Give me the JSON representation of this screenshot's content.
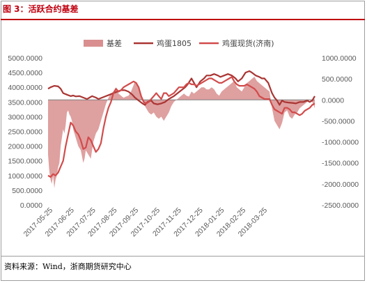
{
  "title": "图 3：活跃合约基差",
  "footer": "资料来源：Wind，浙商期货研究中心",
  "chart_data": {
    "type": "line",
    "legend": [
      {
        "name": "基差",
        "kind": "area",
        "color": "#d98f8f"
      },
      {
        "name": "鸡蛋1805",
        "kind": "line",
        "color": "#a93533"
      },
      {
        "name": "鸡蛋现货(济南)",
        "kind": "line",
        "color": "#d24b4b"
      }
    ],
    "x_ticks": [
      "2017-05-25",
      "2017-06-25",
      "2017-07-25",
      "2017-08-25",
      "2017-09-25",
      "2017-10-25",
      "2017-11-25",
      "2017-12-25",
      "2018-01-25",
      "2018-02-25",
      "2018-03-25"
    ],
    "left_axis": {
      "min": 0,
      "max": 5000,
      "ticks": [
        "0.0000",
        "500.0000",
        "1000.0000",
        "1500.0000",
        "2000.0000",
        "2500.0000",
        "3000.0000",
        "3500.0000",
        "4000.0000",
        "4500.0000",
        "5000.0000"
      ]
    },
    "right_axis": {
      "min": -2500,
      "max": 1000,
      "ticks": [
        "-2500.0000",
        "-2000.0000",
        "-1500.0000",
        "-1000.0000",
        "-500.0000",
        "0.0000",
        "500.0000",
        "1000.0000"
      ]
    },
    "grid": false,
    "legend_position": "top",
    "series": [
      {
        "name": "鸡蛋1805",
        "axis": "left",
        "points": [
          [
            0,
            3950
          ],
          [
            2,
            4000
          ],
          [
            5,
            4050
          ],
          [
            8,
            4030
          ],
          [
            10,
            3950
          ],
          [
            12,
            3800
          ],
          [
            15,
            3750
          ],
          [
            18,
            3700
          ],
          [
            20,
            3720
          ],
          [
            22,
            3690
          ],
          [
            25,
            3700
          ],
          [
            28,
            3650
          ],
          [
            31,
            3600
          ],
          [
            33,
            3650
          ],
          [
            35,
            3700
          ],
          [
            38,
            3650
          ],
          [
            40,
            3600
          ],
          [
            43,
            3650
          ],
          [
            46,
            3700
          ],
          [
            49,
            3750
          ],
          [
            52,
            3800
          ],
          [
            55,
            3850
          ],
          [
            58,
            3900
          ],
          [
            61,
            3900
          ],
          [
            64,
            3850
          ],
          [
            67,
            3750
          ],
          [
            69,
            3650
          ],
          [
            72,
            3550
          ],
          [
            75,
            3450
          ],
          [
            77,
            3400
          ],
          [
            79,
            3500
          ],
          [
            82,
            3550
          ],
          [
            84,
            3450
          ],
          [
            87,
            3420
          ],
          [
            90,
            3450
          ],
          [
            93,
            3500
          ],
          [
            96,
            3600
          ],
          [
            98,
            3650
          ],
          [
            100,
            3700
          ],
          [
            103,
            3800
          ],
          [
            106,
            3900
          ],
          [
            109,
            4000
          ],
          [
            111,
            4100
          ],
          [
            114,
            4300
          ],
          [
            116,
            4150
          ],
          [
            118,
            4000
          ],
          [
            121,
            4200
          ],
          [
            124,
            4300
          ],
          [
            126,
            4400
          ],
          [
            129,
            4400
          ],
          [
            132,
            4450
          ],
          [
            135,
            4400
          ],
          [
            137,
            4350
          ],
          [
            140,
            4400
          ],
          [
            143,
            4450
          ],
          [
            146,
            4400
          ],
          [
            149,
            4300
          ],
          [
            151,
            4200
          ],
          [
            154,
            4300
          ],
          [
            157,
            4500
          ],
          [
            160,
            4550
          ],
          [
            162,
            4500
          ],
          [
            165,
            4400
          ],
          [
            168,
            4350
          ],
          [
            170,
            4300
          ],
          [
            172,
            4300
          ],
          [
            175,
            4150
          ],
          [
            178,
            3800
          ],
          [
            180,
            3650
          ],
          [
            182,
            3550
          ],
          [
            184,
            3400
          ],
          [
            186,
            3550
          ],
          [
            188,
            3500
          ],
          [
            191,
            3480
          ],
          [
            194,
            3470
          ],
          [
            197,
            3450
          ],
          [
            200,
            3500
          ],
          [
            203,
            3500
          ],
          [
            206,
            3550
          ],
          [
            208,
            3500
          ],
          [
            210,
            3550
          ],
          [
            212,
            3700
          ]
        ]
      },
      {
        "name": "鸡蛋现货(济南)",
        "axis": "left",
        "points": [
          [
            0,
            1000
          ],
          [
            2,
            950
          ],
          [
            4,
            1050
          ],
          [
            6,
            1000
          ],
          [
            8,
            1100
          ],
          [
            10,
            1300
          ],
          [
            12,
            1500
          ],
          [
            14,
            2000
          ],
          [
            16,
            2400
          ],
          [
            18,
            2800
          ],
          [
            20,
            2700
          ],
          [
            22,
            2500
          ],
          [
            24,
            2400
          ],
          [
            26,
            2200
          ],
          [
            28,
            1900
          ],
          [
            30,
            1950
          ],
          [
            32,
            2300
          ],
          [
            34,
            2200
          ],
          [
            36,
            2000
          ],
          [
            38,
            1800
          ],
          [
            40,
            1900
          ],
          [
            42,
            2100
          ],
          [
            44,
            2600
          ],
          [
            46,
            3000
          ],
          [
            48,
            3300
          ],
          [
            50,
            3500
          ],
          [
            52,
            3800
          ],
          [
            54,
            3950
          ],
          [
            56,
            3850
          ],
          [
            58,
            3900
          ],
          [
            60,
            4000
          ],
          [
            62,
            4050
          ],
          [
            64,
            4100
          ],
          [
            66,
            4150
          ],
          [
            68,
            4200
          ],
          [
            70,
            4150
          ],
          [
            72,
            4000
          ],
          [
            74,
            3700
          ],
          [
            76,
            3500
          ],
          [
            78,
            3450
          ],
          [
            80,
            3500
          ],
          [
            82,
            3600
          ],
          [
            84,
            3700
          ],
          [
            86,
            3800
          ],
          [
            88,
            3700
          ],
          [
            90,
            3600
          ],
          [
            92,
            3800
          ],
          [
            94,
            3800
          ],
          [
            96,
            3700
          ],
          [
            98,
            3750
          ],
          [
            100,
            3800
          ],
          [
            102,
            3900
          ],
          [
            104,
            4000
          ],
          [
            106,
            4000
          ],
          [
            108,
            4000
          ],
          [
            110,
            4100
          ],
          [
            112,
            4150
          ],
          [
            114,
            4100
          ],
          [
            116,
            4100
          ],
          [
            118,
            4050
          ],
          [
            120,
            4100
          ],
          [
            122,
            4150
          ],
          [
            124,
            4200
          ],
          [
            126,
            4250
          ],
          [
            128,
            4300
          ],
          [
            130,
            4300
          ],
          [
            132,
            4250
          ],
          [
            134,
            4200
          ],
          [
            136,
            4150
          ],
          [
            138,
            4150
          ],
          [
            140,
            4200
          ],
          [
            142,
            4250
          ],
          [
            144,
            4300
          ],
          [
            146,
            4350
          ],
          [
            148,
            4200
          ],
          [
            150,
            4100
          ],
          [
            152,
            4050
          ],
          [
            154,
            4050
          ],
          [
            156,
            4050
          ],
          [
            158,
            4100
          ],
          [
            160,
            4050
          ],
          [
            162,
            4000
          ],
          [
            164,
            3950
          ],
          [
            166,
            3850
          ],
          [
            168,
            3700
          ],
          [
            170,
            3650
          ],
          [
            172,
            3600
          ],
          [
            174,
            3600
          ],
          [
            176,
            3600
          ],
          [
            178,
            3400
          ],
          [
            180,
            3250
          ],
          [
            182,
            3200
          ],
          [
            184,
            3150
          ],
          [
            186,
            3100
          ],
          [
            188,
            3300
          ],
          [
            190,
            3300
          ],
          [
            192,
            3250
          ],
          [
            194,
            3150
          ],
          [
            196,
            3150
          ],
          [
            198,
            3100
          ],
          [
            200,
            3050
          ],
          [
            202,
            3100
          ],
          [
            204,
            3200
          ],
          [
            206,
            3250
          ],
          [
            208,
            3300
          ],
          [
            210,
            3400
          ],
          [
            212,
            3450
          ]
        ]
      },
      {
        "name": "基差",
        "axis": "right",
        "kind": "area",
        "points": [
          [
            0,
            -1300
          ],
          [
            1,
            -1700
          ],
          [
            2,
            -1900
          ],
          [
            3,
            -2000
          ],
          [
            4,
            -1800
          ],
          [
            5,
            -2100
          ],
          [
            6,
            -1900
          ],
          [
            7,
            -1800
          ],
          [
            8,
            -1600
          ],
          [
            9,
            -1500
          ],
          [
            10,
            -1100
          ],
          [
            11,
            -900
          ],
          [
            12,
            -700
          ],
          [
            13,
            -800
          ],
          [
            14,
            -600
          ],
          [
            15,
            -300
          ],
          [
            16,
            -250
          ],
          [
            17,
            -350
          ],
          [
            18,
            -400
          ],
          [
            19,
            -500
          ],
          [
            20,
            -700
          ],
          [
            22,
            -900
          ],
          [
            24,
            -1100
          ],
          [
            26,
            -1200
          ],
          [
            28,
            -1500
          ],
          [
            29,
            -1400
          ],
          [
            30,
            -1200
          ],
          [
            32,
            -1300
          ],
          [
            34,
            -1400
          ],
          [
            36,
            -1000
          ],
          [
            38,
            -800
          ],
          [
            40,
            -700
          ],
          [
            42,
            -500
          ],
          [
            44,
            -300
          ],
          [
            46,
            -100
          ],
          [
            48,
            50
          ],
          [
            50,
            150
          ],
          [
            52,
            200
          ],
          [
            54,
            300
          ],
          [
            56,
            150
          ],
          [
            58,
            100
          ],
          [
            60,
            50
          ],
          [
            62,
            80
          ],
          [
            64,
            100
          ],
          [
            66,
            200
          ],
          [
            68,
            350
          ],
          [
            69,
            450
          ],
          [
            70,
            400
          ],
          [
            72,
            300
          ],
          [
            74,
            100
          ],
          [
            76,
            -100
          ],
          [
            78,
            -200
          ],
          [
            80,
            -300
          ],
          [
            82,
            -350
          ],
          [
            84,
            -300
          ],
          [
            86,
            -400
          ],
          [
            88,
            -450
          ],
          [
            90,
            -400
          ],
          [
            92,
            -500
          ],
          [
            94,
            -400
          ],
          [
            96,
            -300
          ],
          [
            98,
            -150
          ],
          [
            100,
            -50
          ],
          [
            102,
            0
          ],
          [
            104,
            50
          ],
          [
            106,
            100
          ],
          [
            108,
            150
          ],
          [
            110,
            100
          ],
          [
            112,
            80
          ],
          [
            114,
            200
          ],
          [
            116,
            150
          ],
          [
            118,
            200
          ],
          [
            120,
            250
          ],
          [
            122,
            300
          ],
          [
            124,
            300
          ],
          [
            126,
            250
          ],
          [
            128,
            250
          ],
          [
            130,
            300
          ],
          [
            132,
            250
          ],
          [
            134,
            150
          ],
          [
            136,
            100
          ],
          [
            138,
            200
          ],
          [
            140,
            250
          ],
          [
            142,
            300
          ],
          [
            144,
            350
          ],
          [
            146,
            400
          ],
          [
            148,
            450
          ],
          [
            150,
            300
          ],
          [
            152,
            250
          ],
          [
            154,
            200
          ],
          [
            156,
            300
          ],
          [
            158,
            400
          ],
          [
            160,
            450
          ],
          [
            162,
            500
          ],
          [
            164,
            550
          ],
          [
            166,
            450
          ],
          [
            168,
            400
          ],
          [
            170,
            350
          ],
          [
            172,
            300
          ],
          [
            174,
            250
          ],
          [
            176,
            200
          ],
          [
            178,
            -200
          ],
          [
            180,
            -500
          ],
          [
            182,
            -600
          ],
          [
            184,
            -700
          ],
          [
            186,
            -550
          ],
          [
            188,
            -300
          ],
          [
            190,
            -250
          ],
          [
            192,
            -400
          ],
          [
            194,
            -450
          ],
          [
            196,
            -350
          ],
          [
            198,
            -300
          ],
          [
            200,
            -200
          ],
          [
            202,
            -150
          ],
          [
            204,
            -100
          ],
          [
            206,
            -50
          ],
          [
            208,
            0
          ],
          [
            210,
            -50
          ],
          [
            212,
            -200
          ]
        ]
      }
    ]
  }
}
